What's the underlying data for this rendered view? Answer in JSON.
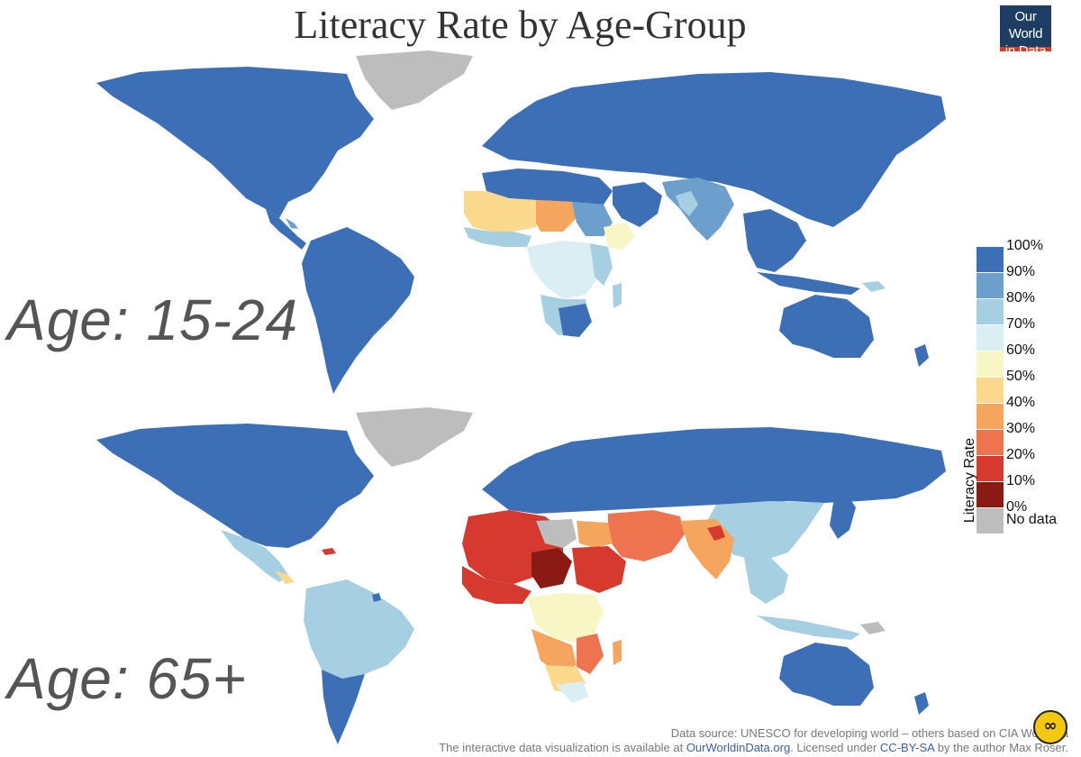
{
  "title": "Literacy Rate by Age-Group",
  "logo": {
    "line1": "Our World",
    "line2": "in Data"
  },
  "maps": [
    {
      "label": "Age: 15-24"
    },
    {
      "label": "Age: 65+"
    }
  ],
  "legend": {
    "title": "Literacy Rate",
    "items": [
      {
        "label": "100%",
        "color": "#3d6fb6"
      },
      {
        "label": "90%",
        "color": "#6c9fcc"
      },
      {
        "label": "80%",
        "color": "#a6cfe2"
      },
      {
        "label": "70%",
        "color": "#daeef3"
      },
      {
        "label": "60%",
        "color": "#f7f6c4"
      },
      {
        "label": "50%",
        "color": "#fbd98c"
      },
      {
        "label": "40%",
        "color": "#f6a55e"
      },
      {
        "label": "30%",
        "color": "#ee7450"
      },
      {
        "label": "20%",
        "color": "#d63a2f"
      },
      {
        "label": "10%",
        "color": "#8c1a14"
      },
      {
        "label": "0%",
        "color": ""
      },
      {
        "label": "No data",
        "color": "#bdbdbd"
      }
    ]
  },
  "footer": {
    "line1": "Data source: UNESCO for developing world – others based on CIA World Fa",
    "line2_prefix": "The interactive data visualization is available at ",
    "line2_link": "OurWorldinData.org",
    "line2_mid": ".  Licensed under ",
    "line2_license": "CC-BY-SA",
    "line2_suffix": " by the author Max Roser."
  },
  "colors": {
    "high": "#3d6fb6",
    "nodata": "#bdbdbd",
    "logo_bg": "#1d3d63",
    "logo_accent": "#d73a27"
  }
}
